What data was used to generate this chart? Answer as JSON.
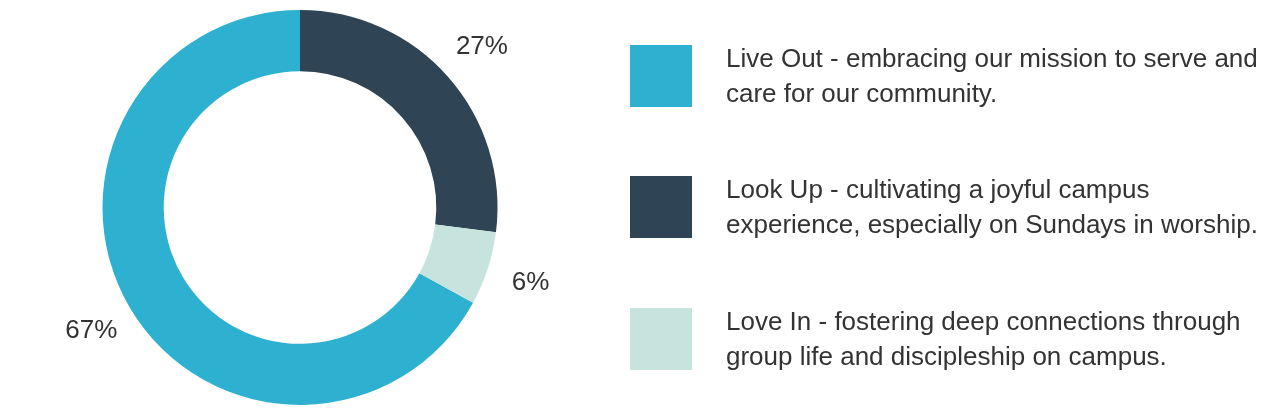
{
  "chart_data": {
    "type": "donut",
    "categories": [
      "Live Out - embracing our mission to serve and care for our community.",
      "Look Up - cultivating a joyful campus experience, especially on Sundays in worship.",
      "Love In - fostering deep connections through group life and discipleship on campus."
    ],
    "values": [
      67,
      27,
      6
    ],
    "colors": [
      "#2eb0d0",
      "#2f4454",
      "#c6e4dd"
    ],
    "value_labels": [
      "67%",
      "27%",
      "6%"
    ],
    "legend": "right"
  }
}
